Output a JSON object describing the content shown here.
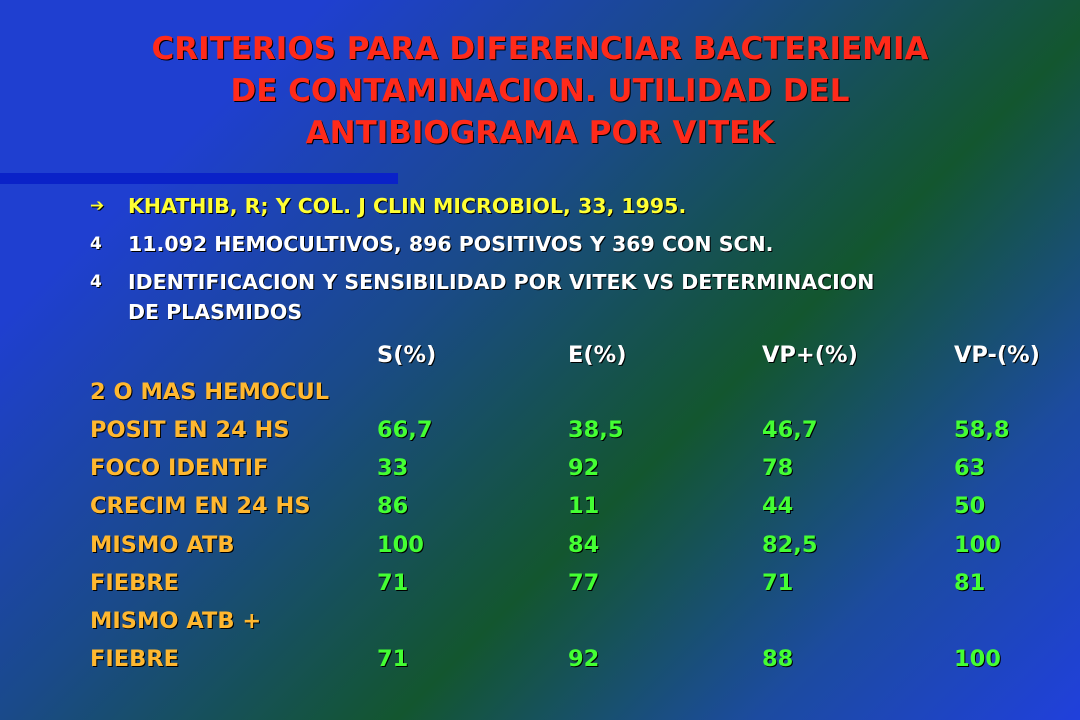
{
  "title": {
    "line1": "CRITERIOS PARA DIFERENCIAR BACTERIEMIA",
    "line2": "DE CONTAMINACION. UTILIDAD DEL",
    "line3": "ANTIBIOGRAMA POR VITEK"
  },
  "bullets": [
    {
      "marker": "➔",
      "text": "KHATHIB, R; Y COL. J CLIN MICROBIOL, 33, 1995."
    },
    {
      "marker": "4",
      "text": "11.092 HEMOCULTIVOS, 896 POSITIVOS Y 369 CON SCN."
    },
    {
      "marker": "4",
      "line1": "IDENTIFICACION Y SENSIBILIDAD POR VITEK VS DETERMINACION",
      "line2": "DE PLASMIDOS"
    }
  ],
  "table": {
    "headers": [
      "S(%)",
      "E(%)",
      "VP+(%)",
      "VP-(%)"
    ],
    "rows": [
      {
        "label": "2 O MAS HEMOCUL",
        "values": [
          "",
          "",
          "",
          ""
        ]
      },
      {
        "label": "POSIT EN 24 HS",
        "values": [
          "66,7",
          "38,5",
          "46,7",
          "58,8"
        ]
      },
      {
        "label": "FOCO IDENTIF",
        "values": [
          "33",
          "92",
          "78",
          "63"
        ]
      },
      {
        "label": "CRECIM EN 24 HS",
        "values": [
          "86",
          "11",
          "44",
          "50"
        ]
      },
      {
        "label": "MISMO ATB",
        "values": [
          "100",
          "84",
          "82,5",
          "100"
        ]
      },
      {
        "label": "FIEBRE",
        "values": [
          "71",
          "77",
          "71",
          "81"
        ]
      },
      {
        "label": "MISMO ATB +",
        "values": [
          "",
          "",
          "",
          ""
        ]
      },
      {
        "label": "FIEBRE",
        "values": [
          "71",
          "92",
          "88",
          "100"
        ]
      }
    ]
  },
  "colors": {
    "title": "#ff2a1a",
    "reference": "#ffff33",
    "labels": "#ffb830",
    "values": "#44ff33",
    "headers": "#ffffff"
  }
}
